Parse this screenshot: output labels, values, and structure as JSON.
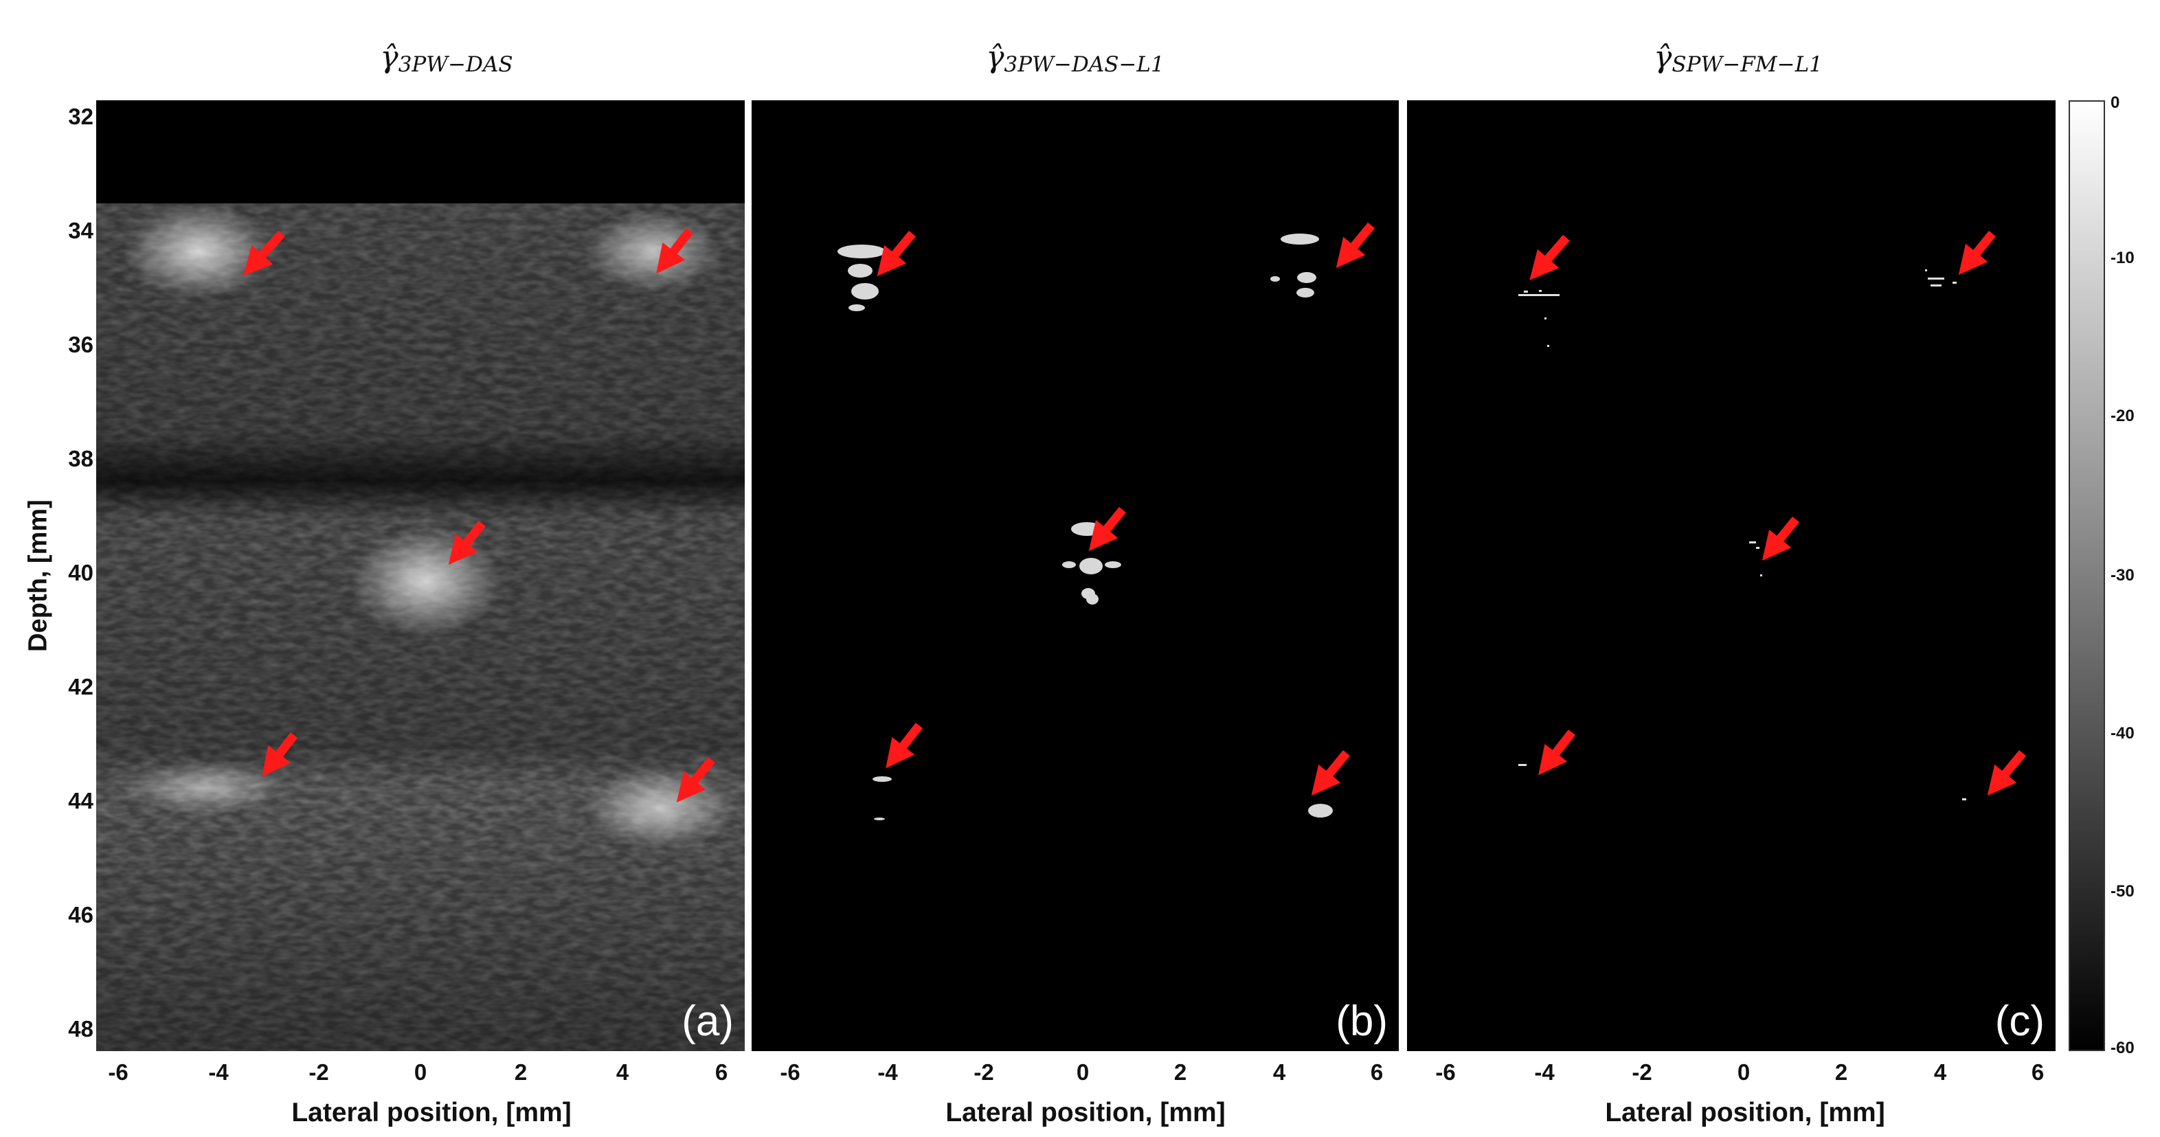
{
  "panels": [
    {
      "id": "a",
      "title": "γ̂",
      "subscript": "3PW−DAS",
      "label": "(a)"
    },
    {
      "id": "b",
      "title": "γ̂",
      "subscript": "3PW−DAS−L1",
      "label": "(b)"
    },
    {
      "id": "c",
      "title": "γ̂",
      "subscript": "SPW−FM−L1",
      "label": "(c)"
    }
  ],
  "y_axis": {
    "label": "Depth, [mm]",
    "ticks": [
      "32",
      "34",
      "36",
      "38",
      "40",
      "42",
      "44",
      "46",
      "48"
    ]
  },
  "x_axis": {
    "label": "Lateral position, [mm]",
    "ticks": [
      "-6",
      "-4",
      "-2",
      "0",
      "2",
      "4",
      "6"
    ]
  },
  "colorbar": {
    "ticks": [
      "0",
      "-10",
      "-20",
      "-30",
      "-40",
      "-50",
      "-60"
    ]
  },
  "arrow_color": "#ff1a1a",
  "targets_mm": [
    {
      "x": -4.1,
      "depth": 34.7
    },
    {
      "x": 4.5,
      "depth": 34.7
    },
    {
      "x": 0.2,
      "depth": 40.0
    },
    {
      "x": -4.0,
      "depth": 43.7
    },
    {
      "x": 4.7,
      "depth": 44.1
    }
  ]
}
